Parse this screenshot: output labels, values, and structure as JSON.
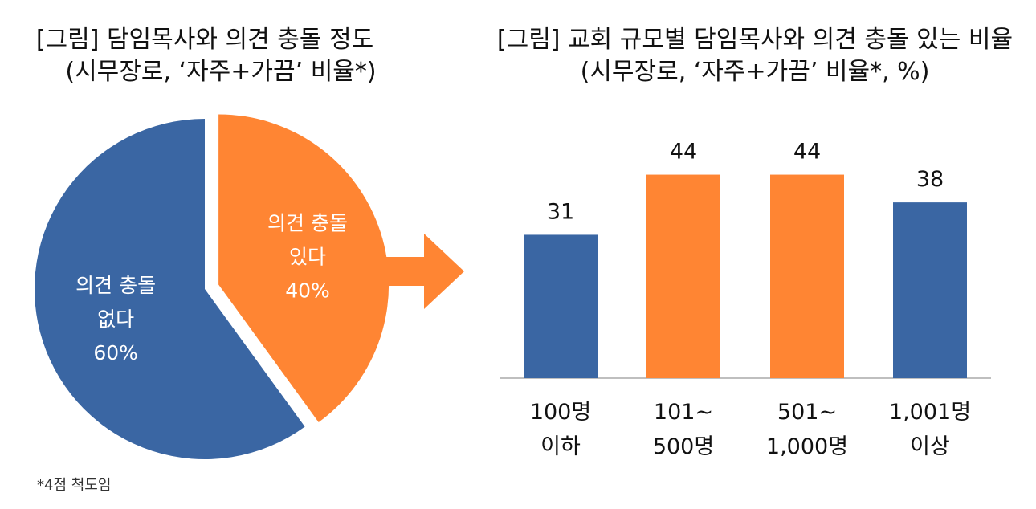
{
  "chart_data": [
    {
      "type": "pie",
      "title": "[그림] 담임목사와 의견 충돌 정도",
      "subtitle": "(시무장로, ‘자주+가끔’ 비율*)",
      "slices": [
        {
          "label_line1": "의견 충돌",
          "label_line2": "있다",
          "value": 40,
          "value_label": "40%",
          "color": "#FF8533",
          "exploded": true
        },
        {
          "label_line1": "의견 충돌",
          "label_line2": "없다",
          "value": 60,
          "value_label": "60%",
          "color": "#3A66A3",
          "exploded": false
        }
      ]
    },
    {
      "type": "bar",
      "title": "[그림] 교회 규모별 담임목사와 의견 충돌 있는 비율",
      "subtitle": "(시무장로, ‘자주+가끔’ 비율*, %)",
      "categories": [
        {
          "line1": "100명",
          "line2": "이하"
        },
        {
          "line1": "101~",
          "line2": "500명"
        },
        {
          "line1": "501~",
          "line2": "1,000명"
        },
        {
          "line1": "1,001명",
          "line2": "이상"
        }
      ],
      "values": [
        31,
        44,
        44,
        38
      ],
      "value_labels": [
        "31",
        "44",
        "44",
        "38"
      ],
      "colors": [
        "#3A66A3",
        "#FF8533",
        "#FF8533",
        "#3A66A3"
      ],
      "ylim": [
        0,
        50
      ],
      "grid": false,
      "legend": "none"
    }
  ],
  "footnote": "*4점 척도임",
  "colors": {
    "blue": "#3A66A3",
    "orange": "#FF8533",
    "axis": "#BFBFBF"
  }
}
